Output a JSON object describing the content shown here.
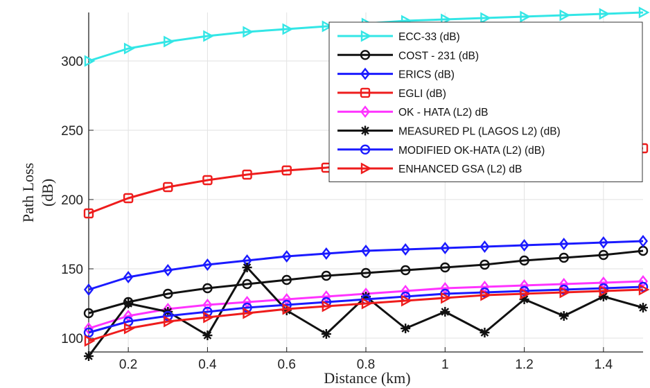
{
  "chart_data": {
    "type": "line",
    "xlabel": "Distance (km)",
    "ylabel": [
      "Path Loss",
      "(dB)"
    ],
    "xlim": [
      0.1,
      1.5
    ],
    "ylim": [
      90,
      335
    ],
    "xticks": [
      0.2,
      0.4,
      0.6,
      0.8,
      1,
      1.2,
      1.4
    ],
    "xtick_labels": [
      "0.2",
      "0.4",
      "0.6",
      "0.8",
      "1",
      "1.2",
      "1.4"
    ],
    "yticks": [
      100,
      150,
      200,
      250,
      300
    ],
    "ytick_labels": [
      "100",
      "150",
      "200",
      "250",
      "300"
    ],
    "grid": true,
    "legend_position": "top-right",
    "x": [
      0.1,
      0.2,
      0.3,
      0.4,
      0.5,
      0.6,
      0.7,
      0.8,
      0.9,
      1.0,
      1.1,
      1.2,
      1.3,
      1.4,
      1.5
    ],
    "series": [
      {
        "name": "ECC-33 (dB)",
        "color": "#33e6e6",
        "marker": "triangle-right",
        "values": [
          300,
          309,
          314,
          318,
          321,
          323,
          325,
          327,
          329,
          330,
          331,
          332,
          333,
          334,
          335
        ]
      },
      {
        "name": "COST - 231 (dB)",
        "color": "#111111",
        "marker": "circle",
        "values": [
          118,
          126,
          132,
          136,
          139,
          142,
          145,
          147,
          149,
          151,
          153,
          156,
          158,
          160,
          163
        ]
      },
      {
        "name": "ERICS (dB)",
        "color": "#1a1aff",
        "marker": "diamond",
        "values": [
          135,
          144,
          149,
          153,
          156,
          159,
          161,
          163,
          164,
          165,
          166,
          167,
          168,
          169,
          170
        ]
      },
      {
        "name": "EGLI (dB)",
        "color": "#ee1c1c",
        "marker": "square",
        "values": [
          190,
          201,
          209,
          214,
          218,
          221,
          223,
          226,
          228,
          230,
          232,
          233,
          235,
          236,
          237
        ]
      },
      {
        "name": "OK - HATA (L2) dB",
        "color": "#ff33ff",
        "marker": "diamond",
        "values": [
          107,
          116,
          121,
          124,
          126,
          128,
          130,
          132,
          134,
          136,
          137,
          138,
          139,
          140,
          141
        ]
      },
      {
        "name": "MEASURED PL (LAGOS L2) (dB)",
        "color": "#111111",
        "marker": "asterisk",
        "values": [
          87,
          125,
          119,
          102,
          151,
          120,
          103,
          130,
          107,
          119,
          104,
          128,
          116,
          130,
          122
        ]
      },
      {
        "name": "MODIFIED OK-HATA  (L2) (dB)",
        "color": "#1a1aff",
        "marker": "circle",
        "values": [
          104,
          112,
          116,
          119,
          122,
          124,
          126,
          128,
          130,
          132,
          133,
          134,
          135,
          136,
          137
        ]
      },
      {
        "name": "ENHANCED GSA (L2) dB",
        "color": "#ee1c1c",
        "marker": "triangle-right",
        "values": [
          98,
          107,
          112,
          115,
          118,
          121,
          123,
          125,
          127,
          129,
          131,
          132,
          133,
          134,
          135
        ]
      }
    ]
  }
}
